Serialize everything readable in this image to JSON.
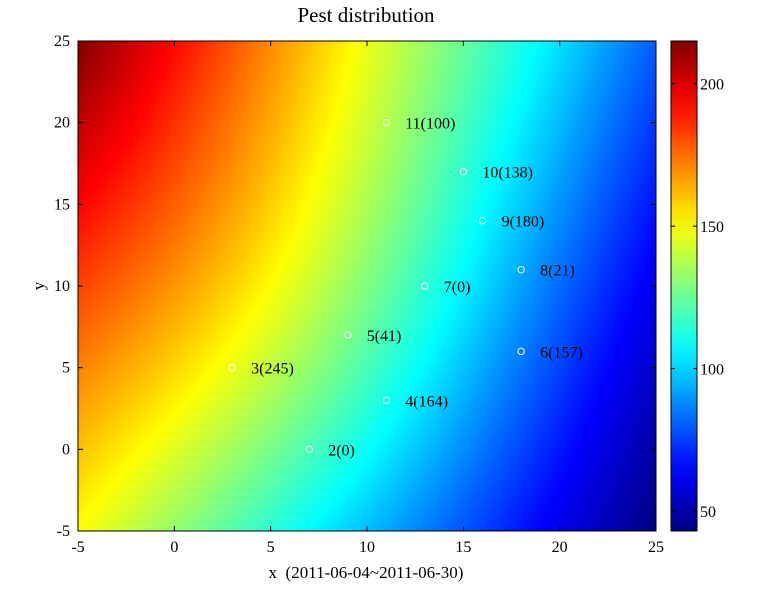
{
  "chart_data": {
    "type": "heatmap",
    "title": "Pest distribution",
    "xlabel": "x  (2011-06-04~2011-06-30)",
    "ylabel": "y",
    "xlim": [
      -5,
      25
    ],
    "ylim": [
      -5,
      25
    ],
    "xticks": [
      -5,
      0,
      5,
      10,
      15,
      20,
      25
    ],
    "yticks": [
      -5,
      0,
      5,
      10,
      15,
      20,
      25
    ],
    "colorbar": {
      "range": [
        43,
        215
      ],
      "ticks": [
        50,
        100,
        150,
        200
      ],
      "colormap": "jet"
    },
    "surface": {
      "description": "smooth interpolated field, highest at top-left, lowest at bottom-right",
      "corner_values": {
        "top_left": 215,
        "top_right": 80,
        "bottom_left": 150,
        "bottom_right": 43
      }
    },
    "points": [
      {
        "label": "2(0)",
        "x": 7,
        "y": 0
      },
      {
        "label": "3(245)",
        "x": 3,
        "y": 5
      },
      {
        "label": "4(164)",
        "x": 11,
        "y": 3
      },
      {
        "label": "5(41)",
        "x": 9,
        "y": 7
      },
      {
        "label": "6(157)",
        "x": 18,
        "y": 6
      },
      {
        "label": "7(0)",
        "x": 13,
        "y": 10
      },
      {
        "label": "8(21)",
        "x": 18,
        "y": 11
      },
      {
        "label": "9(180)",
        "x": 16,
        "y": 14
      },
      {
        "label": "10(138)",
        "x": 15,
        "y": 17
      },
      {
        "label": "11(100)",
        "x": 11,
        "y": 20
      }
    ],
    "marker_color": "#ffffff",
    "grid": false
  }
}
